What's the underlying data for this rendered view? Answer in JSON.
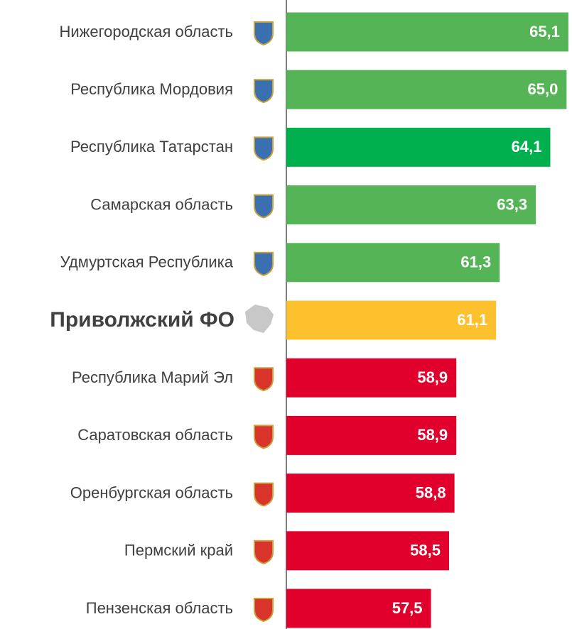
{
  "chart_data": {
    "type": "bar",
    "orientation": "horizontal",
    "categories": [
      "Нижегородская область",
      "Республика Мордовия",
      "Республика Татарстан",
      "Самарская область",
      "Удмуртская Республика",
      "Приволжский ФО",
      "Республика Марий Эл",
      "Саратовская область",
      "Оренбургская область",
      "Пермский край",
      "Пензенская область"
    ],
    "values": [
      65.1,
      65.0,
      64.1,
      63.3,
      61.3,
      61.1,
      58.9,
      58.9,
      58.8,
      58.5,
      57.5
    ],
    "value_labels": [
      "65,1",
      "65,0",
      "64,1",
      "63,3",
      "61,3",
      "61,1",
      "58,9",
      "58,9",
      "58,8",
      "58,5",
      "57,5"
    ],
    "colors": [
      "#55b556",
      "#55b556",
      "#00b04f",
      "#55b556",
      "#55b556",
      "#fdc12e",
      "#e0002b",
      "#e0002b",
      "#e0002b",
      "#e0002b",
      "#e0002b"
    ],
    "highlight": "Приволжский ФО",
    "xlim": [
      49.5,
      65.3
    ]
  }
}
